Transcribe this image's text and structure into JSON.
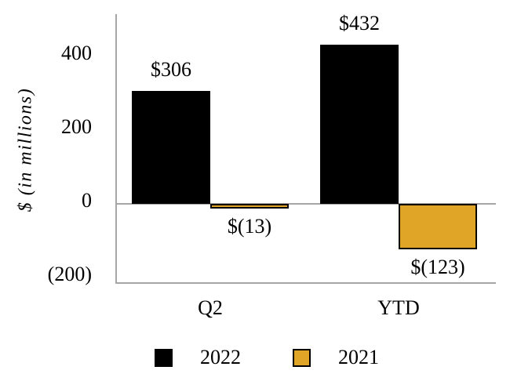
{
  "chart_data": {
    "type": "bar",
    "categories": [
      "Q2",
      "YTD"
    ],
    "series": [
      {
        "name": "2022",
        "color": "#000000",
        "values": [
          306,
          432
        ],
        "value_labels": [
          "$306",
          "$432"
        ]
      },
      {
        "name": "2021",
        "color": "#E0A526",
        "values": [
          -13,
          -123
        ],
        "value_labels": [
          "$(13)",
          "$(123)"
        ]
      }
    ],
    "ylabel": "$ (in millions)",
    "yticks": [
      {
        "value": 400,
        "label": "400"
      },
      {
        "value": 200,
        "label": "200"
      },
      {
        "value": 0,
        "label": "0"
      },
      {
        "value": -200,
        "label": "(200)"
      }
    ],
    "ylim": [
      -217,
      515
    ],
    "grid": false,
    "legend_position": "bottom",
    "legend": [
      "2022",
      "2021"
    ]
  },
  "colors": {
    "background": "#FFFFFF",
    "axis_line": "#A6A6A6",
    "bar_border": "#000000",
    "series_2022": "#000000",
    "series_2021": "#E0A526",
    "text": "#000000"
  }
}
